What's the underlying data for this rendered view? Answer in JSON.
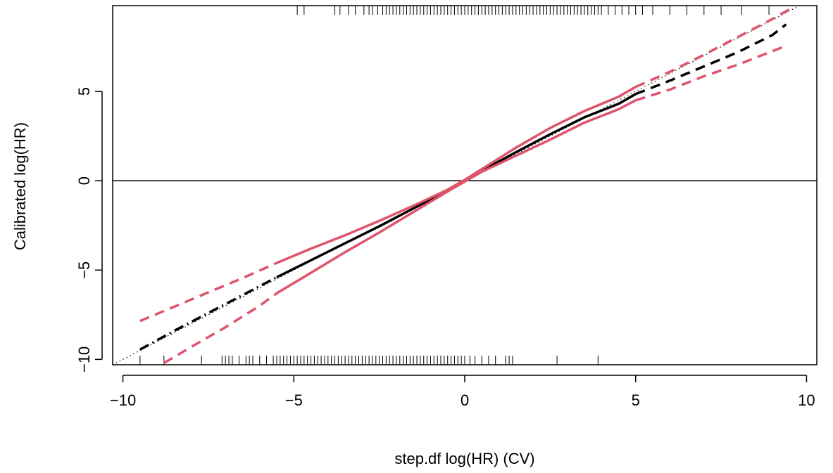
{
  "chart_data": {
    "type": "line",
    "title": "",
    "xlabel": "step.df log(HR) (CV)",
    "ylabel": "Calibrated log(HR)",
    "xlim": [
      -10.3,
      10.3
    ],
    "ylim": [
      -10.3,
      9.8
    ],
    "xticks": [
      {
        "value": -10,
        "label": "−10"
      },
      {
        "value": -5,
        "label": "−5"
      },
      {
        "value": 0,
        "label": "0"
      },
      {
        "value": 5,
        "label": "5"
      },
      {
        "value": 10,
        "label": "10"
      }
    ],
    "yticks": [
      {
        "value": -10,
        "label": "−10"
      },
      {
        "value": -5,
        "label": "−5"
      },
      {
        "value": 0,
        "label": "0"
      },
      {
        "value": 5,
        "label": "5"
      }
    ],
    "grid": false,
    "legend": "none",
    "reference_lines": [
      {
        "kind": "horizontal",
        "y": 0,
        "style": "solid"
      },
      {
        "kind": "identity",
        "style": "dotted"
      }
    ],
    "colors": {
      "estimate": "#000000",
      "band": "#DF536B",
      "axis": "#000000"
    },
    "series": [
      {
        "role": "estimate",
        "style": "solid",
        "x": [
          -5.5,
          -4.5,
          -3.5,
          -2.5,
          -1.5,
          -0.5,
          0,
          0.5,
          1.5,
          2.5,
          3.5,
          4.5,
          5
        ],
        "y": [
          -5.4,
          -4.45,
          -3.5,
          -2.55,
          -1.55,
          -0.55,
          0,
          0.55,
          1.6,
          2.6,
          3.55,
          4.3,
          4.85
        ]
      },
      {
        "role": "estimate",
        "style": "dashed",
        "x": [
          5,
          6,
          7,
          8,
          9,
          9.4
        ],
        "y": [
          4.85,
          5.6,
          6.4,
          7.2,
          8.15,
          8.75
        ]
      },
      {
        "role": "estimate",
        "style": "dash-dot",
        "x": [
          -9.5,
          -8.5,
          -7.5,
          -6.5,
          -5.5
        ],
        "y": [
          -9.45,
          -8.4,
          -7.4,
          -6.4,
          -5.4
        ]
      },
      {
        "role": "upper-bound",
        "style": "solid",
        "x": [
          -5.5,
          -4.5,
          -3.5,
          -2.5,
          -1.5,
          -0.5,
          0,
          0.5,
          1.5,
          2.5,
          3.5,
          4.5,
          5
        ],
        "y": [
          -4.6,
          -3.8,
          -3.05,
          -2.25,
          -1.4,
          -0.5,
          0.05,
          0.65,
          1.85,
          2.95,
          3.9,
          4.7,
          5.25
        ]
      },
      {
        "role": "upper-bound",
        "style": "dashed",
        "x": [
          5,
          6,
          7,
          8,
          9,
          9.5
        ],
        "y": [
          5.25,
          6.1,
          7.05,
          8.05,
          9.05,
          9.6
        ]
      },
      {
        "role": "upper-bound",
        "style": "dashed",
        "x": [
          -9.5,
          -8.5,
          -7.5,
          -6.5,
          -5.5
        ],
        "y": [
          -7.85,
          -7.05,
          -6.25,
          -5.45,
          -4.6
        ]
      },
      {
        "role": "lower-bound",
        "style": "solid",
        "x": [
          -5.5,
          -4.5,
          -3.5,
          -2.5,
          -1.5,
          -0.5,
          0,
          0.5,
          1.5,
          2.5,
          3.5,
          4.5,
          5
        ],
        "y": [
          -6.3,
          -5.15,
          -4.0,
          -2.9,
          -1.75,
          -0.6,
          -0.05,
          0.5,
          1.4,
          2.3,
          3.25,
          4.0,
          4.5
        ]
      },
      {
        "role": "lower-bound",
        "style": "dashed",
        "x": [
          5,
          6,
          7,
          8,
          9,
          9.4
        ],
        "y": [
          4.5,
          5.1,
          5.85,
          6.5,
          7.25,
          7.55
        ]
      },
      {
        "role": "lower-bound",
        "style": "dashed",
        "x": [
          -8.8,
          -8,
          -7,
          -6,
          -5.5
        ],
        "y": [
          -10.2,
          -9.3,
          -8.2,
          -7.0,
          -6.3
        ]
      }
    ],
    "rug": {
      "top_positions_x": [
        -4.9,
        -4.7,
        -3.8,
        -3.65,
        -3.4,
        -3.2,
        -2.95,
        -2.8,
        -2.7,
        -2.55,
        -2.4,
        -2.3,
        -2.2,
        -2.1,
        -2.0,
        -1.9,
        -1.8,
        -1.7,
        -1.6,
        -1.5,
        -1.4,
        -1.3,
        -1.2,
        -1.1,
        -1.0,
        -0.9,
        -0.8,
        -0.7,
        -0.6,
        -0.5,
        -0.4,
        -0.3,
        -0.2,
        -0.1,
        0.0,
        0.1,
        0.2,
        0.3,
        0.4,
        0.5,
        0.6,
        0.7,
        0.8,
        0.9,
        1.0,
        1.1,
        1.2,
        1.3,
        1.4,
        1.5,
        1.6,
        1.7,
        1.8,
        1.9,
        2.0,
        2.1,
        2.2,
        2.3,
        2.4,
        2.5,
        2.6,
        2.7,
        2.8,
        2.9,
        3.0,
        3.1,
        3.2,
        3.3,
        3.4,
        3.5,
        3.6,
        3.7,
        3.8,
        3.9,
        4.0,
        4.2,
        4.4,
        4.6,
        4.8,
        5.0,
        5.2,
        5.5,
        6.0,
        6.5,
        7.0,
        7.5,
        8.1,
        8.9
      ],
      "bottom_positions_x": [
        -9.5,
        -8.8,
        -7.7,
        -7.1,
        -7.0,
        -6.9,
        -6.8,
        -6.6,
        -6.4,
        -6.3,
        -6.2,
        -6.0,
        -5.8,
        -5.6,
        -5.5,
        -5.4,
        -5.3,
        -5.2,
        -5.1,
        -5.0,
        -4.9,
        -4.8,
        -4.7,
        -4.6,
        -4.5,
        -4.4,
        -4.3,
        -4.2,
        -4.1,
        -4.0,
        -3.9,
        -3.8,
        -3.7,
        -3.6,
        -3.5,
        -3.4,
        -3.3,
        -3.2,
        -3.1,
        -3.0,
        -2.9,
        -2.8,
        -2.7,
        -2.6,
        -2.5,
        -2.4,
        -2.3,
        -2.2,
        -2.1,
        -2.0,
        -1.9,
        -1.8,
        -1.7,
        -1.6,
        -1.5,
        -1.4,
        -1.3,
        -1.2,
        -1.1,
        -1.0,
        -0.9,
        -0.8,
        -0.7,
        -0.6,
        -0.5,
        -0.4,
        -0.3,
        -0.2,
        -0.1,
        0.0,
        0.15,
        0.3,
        0.5,
        0.7,
        0.9,
        1.2,
        1.3,
        1.4,
        2.7,
        3.9
      ]
    }
  }
}
